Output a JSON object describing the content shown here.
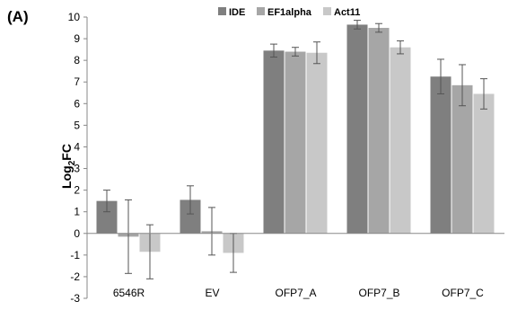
{
  "panel_label": "(A)",
  "chart_data": {
    "type": "bar",
    "categories": [
      "6546R",
      "EV",
      "OFP7_A",
      "OFP7_B",
      "OFP7_C"
    ],
    "series": [
      {
        "name": "IDE",
        "color": "#7f7f7f",
        "values": [
          1.5,
          1.55,
          8.45,
          9.65,
          7.25
        ],
        "errors": [
          0.5,
          0.65,
          0.3,
          0.2,
          0.8
        ]
      },
      {
        "name": "EF1alpha",
        "color": "#a6a6a6",
        "values": [
          -0.15,
          0.1,
          8.4,
          9.5,
          6.85
        ],
        "errors": [
          1.7,
          1.1,
          0.2,
          0.2,
          0.95
        ]
      },
      {
        "name": "Act11",
        "color": "#c8c8c8",
        "values": [
          -0.85,
          -0.9,
          8.35,
          8.6,
          6.45
        ],
        "errors": [
          1.25,
          0.9,
          0.5,
          0.3,
          0.7
        ]
      }
    ],
    "ylabel_main": "Log",
    "ylabel_sub": "2",
    "ylabel_tail": "FC",
    "ylim": [
      -3,
      10
    ],
    "yticks": [
      "-3",
      "-2",
      "-1",
      "0",
      "1",
      "2",
      "3",
      "4",
      "5",
      "6",
      "7",
      "8",
      "9",
      "10"
    ],
    "legend_position": "top-center",
    "grid": false
  }
}
